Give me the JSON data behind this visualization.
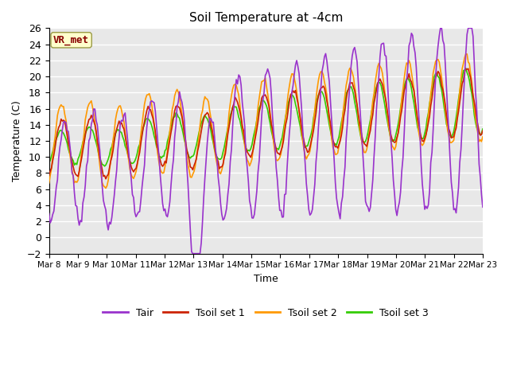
{
  "title": "Soil Temperature at -4cm",
  "xlabel": "Time",
  "ylabel": "Temperature (C)",
  "ylim": [
    -2,
    26
  ],
  "yticks": [
    -2,
    0,
    2,
    4,
    6,
    8,
    10,
    12,
    14,
    16,
    18,
    20,
    22,
    24,
    26
  ],
  "line_colors": {
    "Tair": "#9933cc",
    "Tsoil set 1": "#cc2200",
    "Tsoil set 2": "#ff9900",
    "Tsoil set 3": "#33cc00"
  },
  "line_widths": {
    "Tair": 1.2,
    "Tsoil set 1": 1.2,
    "Tsoil set 2": 1.2,
    "Tsoil set 3": 1.2
  },
  "date_labels": [
    "Mar 8",
    "Mar 9",
    "Mar 10",
    "Mar 11",
    "Mar 12",
    "Mar 13",
    "Mar 14",
    "Mar 15",
    "Mar 16",
    "Mar 17",
    "Mar 18",
    "Mar 19",
    "Mar 20",
    "Mar 21",
    "Mar 22",
    "Mar 23"
  ],
  "background_color": "#e8e8e8",
  "grid_color": "#ffffff",
  "annotation_text": "VR_met",
  "annotation_color": "#880000",
  "annotation_bg": "#ffffcc",
  "n_points": 360
}
